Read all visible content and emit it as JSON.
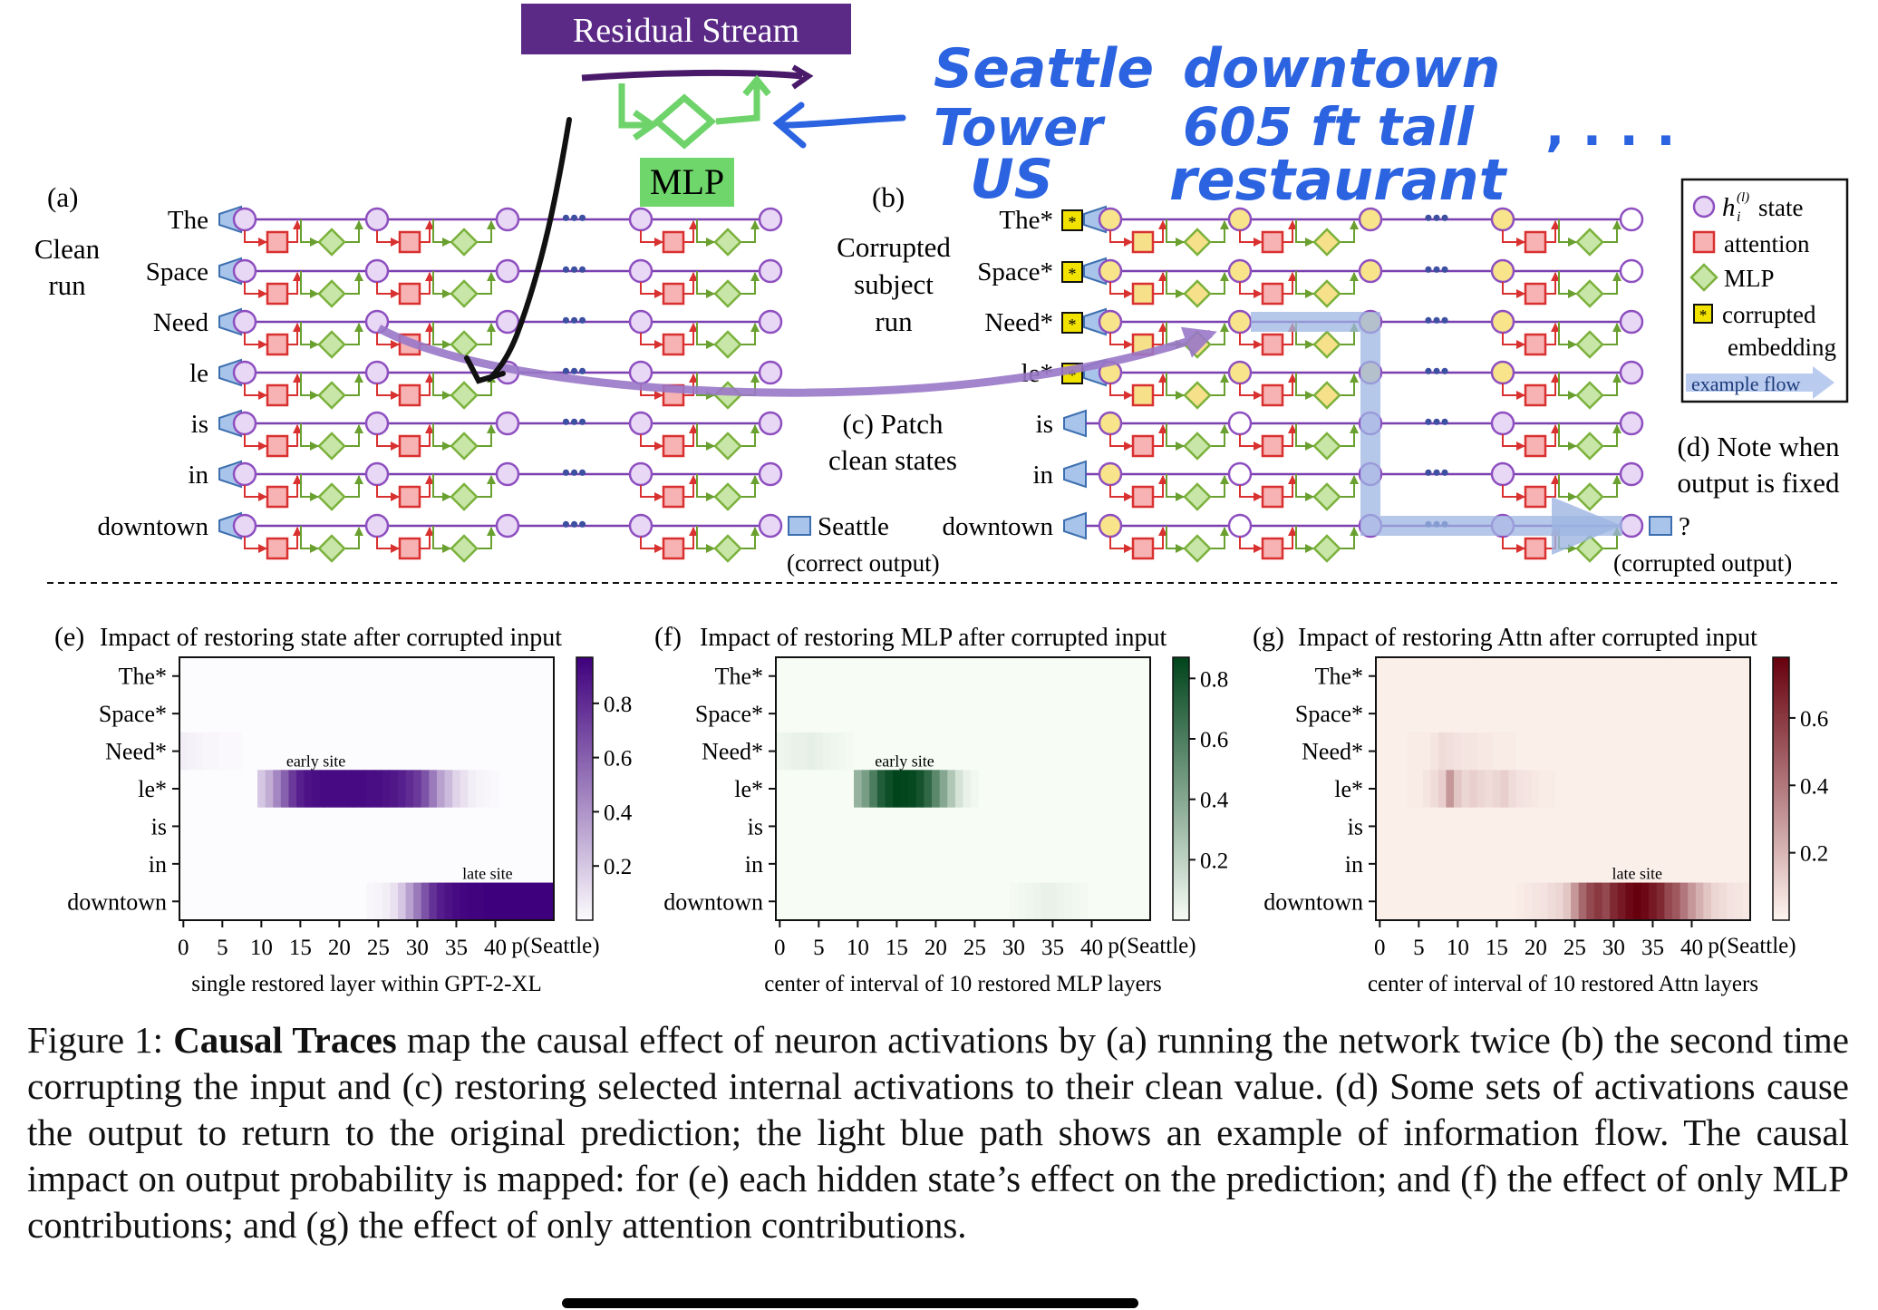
{
  "annotations": {
    "residual_stream": "Residual Stream",
    "mlp": "MLP",
    "handwriting_left": [
      "Seattle",
      "Tower",
      "US"
    ],
    "handwriting_right": [
      "downtown",
      "605 ft tall",
      "restaurant"
    ],
    "handwriting_ellipsis": ", . . ."
  },
  "panel_a": {
    "tag": "(a)",
    "title_lines": [
      "Clean",
      "run"
    ],
    "tokens": [
      "The",
      "Space",
      "Need",
      "le",
      "is",
      "in",
      "downtown"
    ],
    "output": "Seattle",
    "output_note": "(correct output)"
  },
  "panel_b": {
    "tag": "(b)",
    "title_lines": [
      "Corrupted",
      "subject",
      "run"
    ],
    "tokens": [
      "The*",
      "Space*",
      "Need*",
      "le*",
      "is",
      "in",
      "downtown"
    ],
    "output": "?",
    "output_note": "(corrupted output)"
  },
  "panel_c": {
    "lines": [
      "(c) Patch",
      "clean states"
    ]
  },
  "panel_d": {
    "lines": [
      "(d) Note when",
      "output is fixed"
    ]
  },
  "legend": {
    "state": "state",
    "state_symbol": "h",
    "state_sub": "i",
    "state_sup": "(l)",
    "attention": "attention",
    "mlp": "MLP",
    "corrupted_lines": [
      "corrupted",
      "embedding"
    ],
    "example_flow": "example flow",
    "colors": {
      "state": "#8e4fc0",
      "attention": "#d93030",
      "mlp": "#7bb13c",
      "corrupted": "#f2e200",
      "flow": "#8fa8d8"
    }
  },
  "chart_data": [
    {
      "type": "heatmap",
      "panel": "(e)",
      "title": "Impact of restoring state after corrupted input",
      "rows": [
        "The*",
        "Space*",
        "Need*",
        "le*",
        "is",
        "in",
        "downtown"
      ],
      "xlabel": "single restored layer within GPT-2-XL",
      "xticks": [
        0,
        5,
        10,
        15,
        20,
        25,
        30,
        35,
        40
      ],
      "extra_xlabel": "p(Seattle)",
      "colorbar_ticks": [
        0.2,
        0.4,
        0.6,
        0.8
      ],
      "colormap": "purples",
      "vmax": 0.97,
      "annotations": [
        {
          "text": "early site",
          "row": "le*",
          "layer": 17
        },
        {
          "text": "late site",
          "row": "downtown",
          "layer": 39
        }
      ],
      "values": {
        "Need*": [
          0.05,
          0.04,
          0.03,
          0.02,
          0.02,
          0.01,
          0.01,
          0.01
        ],
        "le*": [
          0,
          0,
          0,
          0,
          0,
          0,
          0,
          0,
          0,
          0,
          0.2,
          0.3,
          0.45,
          0.6,
          0.75,
          0.85,
          0.9,
          0.92,
          0.93,
          0.93,
          0.93,
          0.93,
          0.93,
          0.93,
          0.92,
          0.92,
          0.9,
          0.88,
          0.85,
          0.8,
          0.75,
          0.65,
          0.5,
          0.35,
          0.25,
          0.15,
          0.1,
          0.05,
          0.03,
          0.02,
          0.01,
          0,
          0,
          0,
          0,
          0,
          0,
          0
        ],
        "downtown": [
          0,
          0,
          0,
          0,
          0,
          0,
          0,
          0,
          0,
          0,
          0,
          0,
          0,
          0,
          0,
          0,
          0,
          0,
          0,
          0,
          0,
          0,
          0,
          0,
          0.02,
          0.03,
          0.05,
          0.1,
          0.2,
          0.35,
          0.5,
          0.65,
          0.78,
          0.86,
          0.9,
          0.93,
          0.95,
          0.96,
          0.96,
          0.97,
          0.97,
          0.97,
          0.97,
          0.97,
          0.97,
          0.97,
          0.97,
          0.97
        ]
      }
    },
    {
      "type": "heatmap",
      "panel": "(f)",
      "title": "Impact of restoring MLP after corrupted input",
      "rows": [
        "The*",
        "Space*",
        "Need*",
        "le*",
        "is",
        "in",
        "downtown"
      ],
      "xlabel": "center of interval of 10 restored MLP layers",
      "xticks": [
        0,
        5,
        10,
        15,
        20,
        25,
        30,
        35,
        40
      ],
      "extra_xlabel": "p(Seattle)",
      "colorbar_ticks": [
        0.2,
        0.4,
        0.6,
        0.8
      ],
      "colormap": "greens",
      "vmax": 0.87,
      "annotations": [
        {
          "text": "early site",
          "row": "le*",
          "layer": 16
        }
      ],
      "values": {
        "Need*": [
          0.03,
          0.04,
          0.05,
          0.05,
          0.06,
          0.05,
          0.04,
          0.03,
          0.02,
          0.01
        ],
        "le*": [
          0,
          0,
          0,
          0,
          0,
          0,
          0,
          0,
          0,
          0,
          0.35,
          0.45,
          0.6,
          0.75,
          0.82,
          0.87,
          0.86,
          0.85,
          0.8,
          0.7,
          0.55,
          0.4,
          0.25,
          0.12,
          0.05,
          0.02,
          0,
          0,
          0,
          0,
          0,
          0,
          0,
          0,
          0,
          0,
          0,
          0,
          0,
          0,
          0,
          0,
          0,
          0,
          0,
          0,
          0,
          0
        ],
        "downtown": [
          0,
          0,
          0,
          0,
          0,
          0,
          0,
          0,
          0,
          0,
          0,
          0,
          0,
          0,
          0,
          0,
          0,
          0,
          0,
          0,
          0,
          0,
          0,
          0,
          0,
          0,
          0,
          0,
          0,
          0,
          0.01,
          0.02,
          0.03,
          0.04,
          0.05,
          0.05,
          0.04,
          0.03,
          0.02,
          0.01
        ]
      }
    },
    {
      "type": "heatmap",
      "panel": "(g)",
      "title": "Impact of restoring Attn after corrupted input",
      "rows": [
        "The*",
        "Space*",
        "Need*",
        "le*",
        "is",
        "in",
        "downtown"
      ],
      "xlabel": "center of interval of 10 restored Attn layers",
      "xticks": [
        0,
        5,
        10,
        15,
        20,
        25,
        30,
        35,
        40
      ],
      "extra_xlabel": "p(Seattle)",
      "colorbar_ticks": [
        0.2,
        0.4,
        0.6
      ],
      "colormap": "reds",
      "vmax": 0.78,
      "annotations": [
        {
          "text": "late site",
          "row": "downtown",
          "layer": 33
        }
      ],
      "values": {
        "The*": [
          0.02,
          0.02,
          0.02,
          0.02,
          0.02,
          0.02,
          0.02,
          0.02,
          0.02,
          0.02,
          0.02,
          0.02,
          0.02,
          0.02,
          0.02,
          0.02,
          0.02,
          0.02,
          0.02,
          0.02,
          0.02,
          0.02,
          0.02,
          0.02,
          0.02,
          0.02,
          0.02,
          0.02,
          0.02,
          0.02,
          0.02,
          0.02,
          0.02,
          0.02,
          0.02,
          0.02,
          0.02,
          0.02,
          0.02,
          0.02,
          0.02,
          0.02,
          0.02,
          0.02,
          0.02,
          0.02,
          0.02,
          0.02
        ],
        "Space*": [
          0.02,
          0.02,
          0.02,
          0.02,
          0.02,
          0.02,
          0.02,
          0.02,
          0.02,
          0.02,
          0.02,
          0.02,
          0.02,
          0.02,
          0.02,
          0.02,
          0.02,
          0.02,
          0.02,
          0.02,
          0.02,
          0.02,
          0.02,
          0.02,
          0.02,
          0.02,
          0.02,
          0.02,
          0.02,
          0.02,
          0.02,
          0.02,
          0.02,
          0.02,
          0.02,
          0.02,
          0.02,
          0.02,
          0.02,
          0.02,
          0.02,
          0.02,
          0.02,
          0.02,
          0.02,
          0.02,
          0.02,
          0.02
        ],
        "Need*": [
          0.02,
          0.02,
          0.02,
          0.02,
          0.03,
          0.03,
          0.03,
          0.05,
          0.08,
          0.07,
          0.06,
          0.05,
          0.05,
          0.04,
          0.04,
          0.03,
          0.03,
          0.03,
          0.02,
          0.02,
          0.02,
          0.02,
          0.02,
          0.02,
          0.02,
          0.02,
          0.02,
          0.02,
          0.02,
          0.02,
          0.02,
          0.02,
          0.02,
          0.02,
          0.02,
          0.02,
          0.02,
          0.02,
          0.02,
          0.02,
          0.02,
          0.02,
          0.02,
          0.02,
          0.02,
          0.02,
          0.02,
          0.02
        ],
        "le*": [
          0.02,
          0.02,
          0.02,
          0.02,
          0.03,
          0.03,
          0.05,
          0.08,
          0.12,
          0.3,
          0.15,
          0.1,
          0.12,
          0.1,
          0.08,
          0.1,
          0.12,
          0.08,
          0.06,
          0.05,
          0.04,
          0.03,
          0.03,
          0.02,
          0.02,
          0.02,
          0.02,
          0.02,
          0.02,
          0.02,
          0.02,
          0.02,
          0.02,
          0.02,
          0.02,
          0.02,
          0.02,
          0.02,
          0.02,
          0.02,
          0.02,
          0.02,
          0.02,
          0.02,
          0.02,
          0.02,
          0.02,
          0.02
        ],
        "is": [
          0.02,
          0.02,
          0.02,
          0.02,
          0.02,
          0.02,
          0.02,
          0.02,
          0.02,
          0.02,
          0.02,
          0.02,
          0.02,
          0.02,
          0.02,
          0.02,
          0.02,
          0.02,
          0.02,
          0.02,
          0.02,
          0.02,
          0.02,
          0.02,
          0.02,
          0.02,
          0.02,
          0.02,
          0.02,
          0.02,
          0.02,
          0.02,
          0.02,
          0.02,
          0.02,
          0.02,
          0.02,
          0.02,
          0.02,
          0.02,
          0.02,
          0.02,
          0.02,
          0.02,
          0.02,
          0.02,
          0.02,
          0.02
        ],
        "in": [
          0.02,
          0.02,
          0.02,
          0.02,
          0.02,
          0.02,
          0.02,
          0.02,
          0.02,
          0.02,
          0.02,
          0.02,
          0.02,
          0.02,
          0.02,
          0.02,
          0.02,
          0.02,
          0.02,
          0.02,
          0.02,
          0.02,
          0.02,
          0.02,
          0.02,
          0.02,
          0.02,
          0.02,
          0.02,
          0.02,
          0.02,
          0.02,
          0.02,
          0.02,
          0.02,
          0.02,
          0.02,
          0.02,
          0.02,
          0.02,
          0.02,
          0.02,
          0.02,
          0.02,
          0.02,
          0.02,
          0.02,
          0.02
        ],
        "downtown": [
          0.02,
          0.02,
          0.02,
          0.02,
          0.02,
          0.02,
          0.02,
          0.02,
          0.02,
          0.02,
          0.02,
          0.02,
          0.02,
          0.02,
          0.02,
          0.02,
          0.02,
          0.02,
          0.03,
          0.04,
          0.05,
          0.06,
          0.08,
          0.1,
          0.15,
          0.3,
          0.45,
          0.55,
          0.6,
          0.55,
          0.65,
          0.7,
          0.75,
          0.78,
          0.75,
          0.7,
          0.65,
          0.55,
          0.5,
          0.4,
          0.3,
          0.22,
          0.15,
          0.1,
          0.08,
          0.06,
          0.05,
          0.04
        ]
      }
    }
  ],
  "caption": {
    "label": "Figure 1:",
    "bold": "Causal Traces",
    "text": " map the causal effect of neuron activations by (a) running the network twice (b) the second time corrupting the input and (c) restoring selected internal activations to their clean value. (d) Some sets of activations cause the output to return to the original prediction; the light blue path shows an example of information flow. The causal impact on output probability is mapped: for (e) each hidden state’s effect on the prediction; and (f) the effect of only MLP contributions; and (g) the effect of only attention contributions."
  }
}
